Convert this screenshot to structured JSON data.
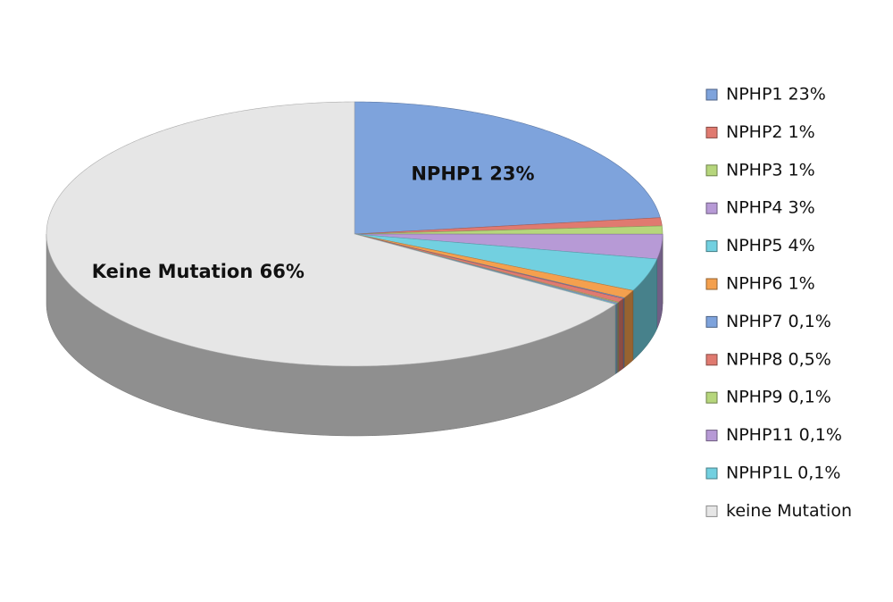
{
  "chart_data": {
    "type": "pie",
    "categories": [
      "NPHP1 23%",
      "NPHP2 1%",
      "NPHP3 1%",
      "NPHP4 3%",
      "NPHP5 4%",
      "NPHP6 1%",
      "NPHP7 0,1%",
      "NPHP8 0,5%",
      "NPHP9 0,1%",
      "NPHP11 0,1%",
      "NPHP1L 0,1%",
      "keine Mutation"
    ],
    "values": [
      23,
      1,
      1,
      3,
      4,
      1,
      0.1,
      0.5,
      0.1,
      0.1,
      0.1,
      66
    ],
    "value_labels": [
      "NPHP1 23%",
      null,
      null,
      null,
      null,
      null,
      null,
      null,
      null,
      null,
      null,
      "Keine Mutation 66%"
    ],
    "colors": [
      "#7ea3dc",
      "#e07a70",
      "#b6d67c",
      "#b79ad6",
      "#72d0e0",
      "#f4a04e",
      "#7ea3dc",
      "#e07a70",
      "#b6d67c",
      "#b79ad6",
      "#72d0e0",
      "#e6e6e6"
    ],
    "legend": "right"
  }
}
